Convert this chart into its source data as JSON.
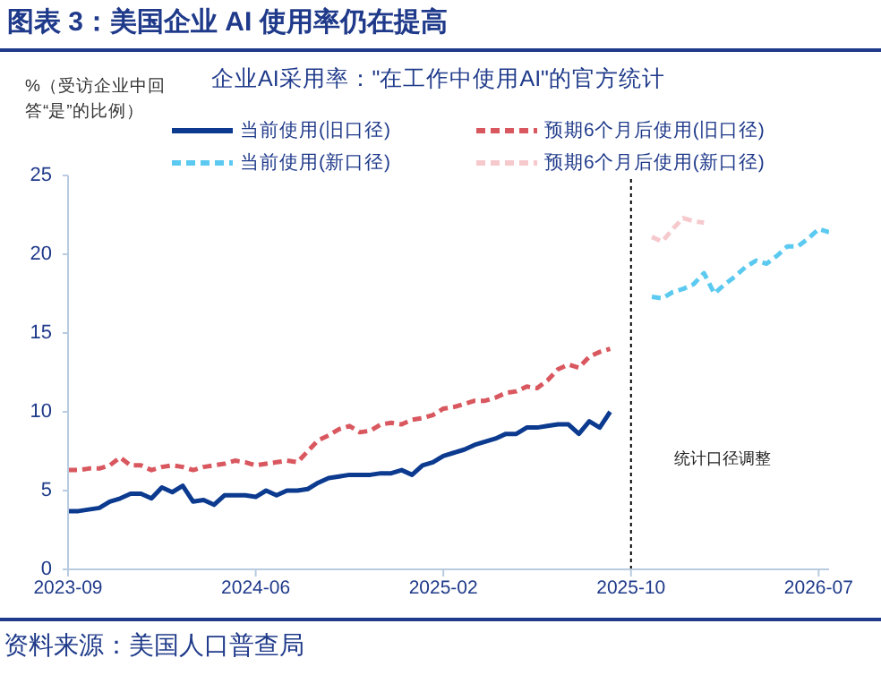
{
  "chart_data": {
    "type": "line",
    "title": "图表 3：美国企业 AI 使用率仍在提高",
    "subtitle": "企业AI采用率：\"在工作中使用AI\"的官方统计",
    "ylabel": "%（受访企业中回答“是”的比例）",
    "categories": [
      "2023-09",
      null,
      null,
      null,
      null,
      null,
      null,
      null,
      null,
      null,
      null,
      null,
      null,
      null,
      null,
      null,
      null,
      null,
      "2024-06",
      null,
      null,
      null,
      null,
      null,
      null,
      null,
      null,
      null,
      null,
      null,
      null,
      null,
      null,
      null,
      null,
      null,
      "2025-02",
      null,
      null,
      null,
      null,
      null,
      null,
      null,
      null,
      null,
      null,
      null,
      null,
      null,
      null,
      null,
      null,
      null,
      "2025-10",
      null,
      null,
      null,
      null,
      null,
      null,
      null,
      null,
      null,
      null,
      null,
      null,
      null,
      null,
      null,
      null,
      null,
      "2026-07",
      null
    ],
    "series": [
      {
        "name": "当前使用(旧口径)",
        "color": "#0b3a8f",
        "line_style": "solid",
        "values": [
          3.7,
          3.7,
          3.8,
          3.9,
          4.3,
          4.5,
          4.8,
          4.8,
          4.5,
          5.2,
          4.9,
          5.3,
          4.3,
          4.4,
          4.1,
          4.7,
          4.7,
          4.7,
          4.6,
          5.0,
          4.7,
          5.0,
          5.0,
          5.1,
          5.5,
          5.8,
          5.9,
          6.0,
          6.0,
          6.0,
          6.1,
          6.1,
          6.3,
          6.0,
          6.6,
          6.8,
          7.2,
          7.4,
          7.6,
          7.9,
          8.1,
          8.3,
          8.6,
          8.6,
          9.0,
          9.0,
          9.1,
          9.2,
          9.2,
          8.6,
          9.4,
          9.0,
          10.0,
          null,
          null,
          null,
          null,
          null,
          null,
          null,
          null,
          null,
          null,
          null,
          null,
          null,
          null,
          null,
          null,
          null,
          null,
          null,
          null,
          null
        ]
      },
      {
        "name": "预期6个月后使用(旧口径)",
        "color": "#d9585f",
        "line_style": "dashed",
        "values": [
          6.3,
          6.3,
          6.4,
          6.4,
          6.6,
          7.1,
          6.6,
          6.6,
          6.3,
          6.5,
          6.6,
          6.5,
          6.3,
          6.5,
          6.6,
          6.7,
          6.9,
          6.8,
          6.6,
          6.7,
          6.8,
          6.9,
          6.8,
          7.5,
          8.2,
          8.5,
          8.9,
          9.1,
          8.7,
          8.8,
          9.2,
          9.3,
          9.2,
          9.5,
          9.6,
          9.8,
          10.2,
          10.3,
          10.5,
          10.7,
          10.7,
          10.9,
          11.2,
          11.3,
          11.6,
          11.5,
          12.0,
          12.7,
          13.0,
          12.8,
          13.5,
          13.8,
          14.0,
          null,
          null,
          null,
          null,
          null,
          null,
          null,
          null,
          null,
          null,
          null,
          null,
          null,
          null,
          null,
          null,
          null,
          null,
          null,
          null,
          null
        ]
      },
      {
        "name": "当前使用(新口径)",
        "color": "#5ccaf0",
        "line_style": "dashed",
        "values": [
          null,
          null,
          null,
          null,
          null,
          null,
          null,
          null,
          null,
          null,
          null,
          null,
          null,
          null,
          null,
          null,
          null,
          null,
          null,
          null,
          null,
          null,
          null,
          null,
          null,
          null,
          null,
          null,
          null,
          null,
          null,
          null,
          null,
          null,
          null,
          null,
          null,
          null,
          null,
          null,
          null,
          null,
          null,
          null,
          null,
          null,
          null,
          null,
          null,
          null,
          null,
          null,
          null,
          null,
          null,
          null,
          17.3,
          17.2,
          17.6,
          17.8,
          18.1,
          18.8,
          17.5,
          18.1,
          18.6,
          19.2,
          19.6,
          19.4,
          19.9,
          20.5,
          20.5,
          21.0,
          21.6,
          21.4
        ]
      },
      {
        "name": "预期6个月后使用(新口径)",
        "color": "#f6c9cd",
        "line_style": "dashed",
        "values": [
          null,
          null,
          null,
          null,
          null,
          null,
          null,
          null,
          null,
          null,
          null,
          null,
          null,
          null,
          null,
          null,
          null,
          null,
          null,
          null,
          null,
          null,
          null,
          null,
          null,
          null,
          null,
          null,
          null,
          null,
          null,
          null,
          null,
          null,
          null,
          null,
          null,
          null,
          null,
          null,
          null,
          null,
          null,
          null,
          null,
          null,
          null,
          null,
          null,
          null,
          null,
          null,
          null,
          null,
          null,
          null,
          21.1,
          20.8,
          21.6,
          22.3,
          22.1,
          22.0,
          null,
          null,
          null,
          null,
          null,
          null,
          null,
          null,
          null,
          null,
          null,
          null
        ]
      }
    ],
    "ylim": [
      0,
      25
    ],
    "yticks": [
      0,
      5,
      10,
      15,
      20,
      25
    ],
    "grid": false,
    "legend": "top",
    "marker": "none",
    "ref_lines": [
      {
        "axis": "x",
        "value": "2025-10",
        "label": "统计口径调整",
        "color": "#000000",
        "line_style": "dotted"
      }
    ],
    "annotations": [
      "资料来源：美国人口普查局"
    ]
  }
}
